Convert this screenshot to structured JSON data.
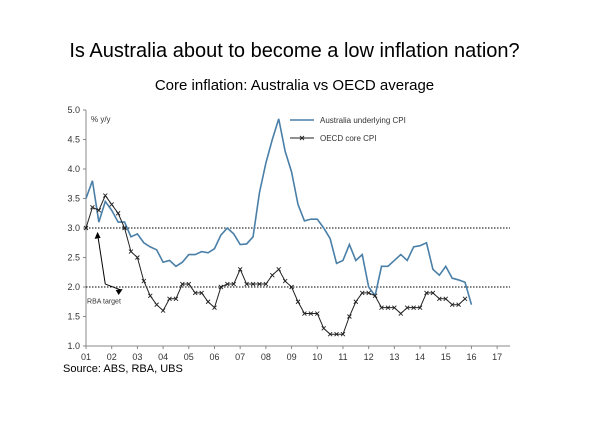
{
  "title": "Is Australia about to become a low inflation nation?",
  "subtitle": "Core inflation: Australia vs OECD average",
  "source": "Source: ABS, RBA, UBS",
  "chart_data": {
    "type": "line",
    "title": "Is Australia about to become a low inflation nation?",
    "subtitle": "Core inflation: Australia vs OECD average",
    "ylabel": "% y/y",
    "xlabel": "",
    "ylim": [
      1.0,
      5.0
    ],
    "xlim": [
      2001,
      2017.5
    ],
    "yticks": [
      "1.0",
      "1.5",
      "2.0",
      "2.5",
      "3.0",
      "3.5",
      "4.0",
      "4.5",
      "5.0"
    ],
    "xticks": [
      "01",
      "02",
      "03",
      "04",
      "05",
      "06",
      "07",
      "08",
      "09",
      "10",
      "11",
      "12",
      "13",
      "14",
      "15",
      "16",
      "17"
    ],
    "reference_lines": [
      2.0,
      3.0
    ],
    "legend_position": "top-right",
    "annotation": "RBA target",
    "colors": {
      "australia": "#4a7fa8",
      "oecd": "#222222",
      "reference": "#000000"
    },
    "series": [
      {
        "name": "Australia underlying CPI",
        "x": [
          2001.0,
          2001.25,
          2001.5,
          2001.75,
          2002.0,
          2002.25,
          2002.5,
          2002.75,
          2003.0,
          2003.25,
          2003.5,
          2003.75,
          2004.0,
          2004.25,
          2004.5,
          2004.75,
          2005.0,
          2005.25,
          2005.5,
          2005.75,
          2006.0,
          2006.25,
          2006.5,
          2006.75,
          2007.0,
          2007.25,
          2007.5,
          2007.75,
          2008.0,
          2008.25,
          2008.5,
          2008.75,
          2009.0,
          2009.25,
          2009.5,
          2009.75,
          2010.0,
          2010.25,
          2010.5,
          2010.75,
          2011.0,
          2011.25,
          2011.5,
          2011.75,
          2012.0,
          2012.25,
          2012.5,
          2012.75,
          2013.0,
          2013.25,
          2013.5,
          2013.75,
          2014.0,
          2014.25,
          2014.5,
          2014.75,
          2015.0,
          2015.25,
          2015.5,
          2015.75,
          2016.0
        ],
        "values": [
          3.5,
          3.8,
          3.1,
          3.45,
          3.3,
          3.1,
          3.1,
          2.85,
          2.9,
          2.75,
          2.68,
          2.63,
          2.42,
          2.45,
          2.35,
          2.42,
          2.55,
          2.55,
          2.6,
          2.58,
          2.65,
          2.88,
          3.0,
          2.9,
          2.72,
          2.73,
          2.85,
          3.6,
          4.1,
          4.5,
          4.85,
          4.3,
          3.95,
          3.4,
          3.12,
          3.15,
          3.15,
          3.0,
          2.82,
          2.4,
          2.45,
          2.72,
          2.45,
          2.55,
          2.0,
          1.85,
          2.35,
          2.35,
          2.45,
          2.55,
          2.45,
          2.68,
          2.7,
          2.75,
          2.3,
          2.2,
          2.35,
          2.15,
          2.12,
          2.08,
          1.7
        ]
      },
      {
        "name": "OECD core CPI",
        "x": [
          2001.0,
          2001.25,
          2001.5,
          2001.75,
          2002.0,
          2002.25,
          2002.5,
          2002.75,
          2003.0,
          2003.25,
          2003.5,
          2003.75,
          2004.0,
          2004.25,
          2004.5,
          2004.75,
          2005.0,
          2005.25,
          2005.5,
          2005.75,
          2006.0,
          2006.25,
          2006.5,
          2006.75,
          2007.0,
          2007.25,
          2007.5,
          2007.75,
          2008.0,
          2008.25,
          2008.5,
          2008.75,
          2009.0,
          2009.25,
          2009.5,
          2009.75,
          2010.0,
          2010.25,
          2010.5,
          2010.75,
          2011.0,
          2011.25,
          2011.5,
          2011.75,
          2012.0,
          2012.25,
          2012.5,
          2012.75,
          2013.0,
          2013.25,
          2013.5,
          2013.75,
          2014.0,
          2014.25,
          2014.5,
          2014.75,
          2015.0,
          2015.25,
          2015.5,
          2015.75
        ],
        "values": [
          3.0,
          3.35,
          3.3,
          3.55,
          3.4,
          3.25,
          3.0,
          2.6,
          2.5,
          2.1,
          1.85,
          1.7,
          1.6,
          1.8,
          1.8,
          2.05,
          2.05,
          1.9,
          1.9,
          1.75,
          1.65,
          2.0,
          2.05,
          2.05,
          2.3,
          2.05,
          2.05,
          2.05,
          2.05,
          2.2,
          2.3,
          2.1,
          2.0,
          1.75,
          1.55,
          1.55,
          1.55,
          1.3,
          1.2,
          1.2,
          1.2,
          1.5,
          1.75,
          1.9,
          1.9,
          1.85,
          1.65,
          1.65,
          1.65,
          1.55,
          1.65,
          1.65,
          1.65,
          1.9,
          1.9,
          1.8,
          1.8,
          1.7,
          1.7,
          1.8
        ]
      }
    ]
  }
}
